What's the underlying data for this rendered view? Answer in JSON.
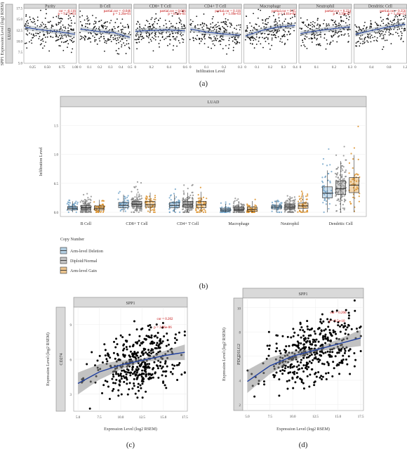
{
  "captions": {
    "a": "(a)",
    "b": "(b)",
    "c": "(c)",
    "d": "(d)"
  },
  "chart_data": [
    {
      "id": "a",
      "type": "scatter",
      "side_label": "LUAD",
      "ylabel": "SPP1 Expression Level (log2 RSEM)",
      "xlabel": "Infiltration Level",
      "ylim": [
        5,
        17.5
      ],
      "yticks": [
        "5.0",
        "7.5",
        "10.0",
        "12.5",
        "15.0",
        "17.5"
      ],
      "panels": [
        {
          "name": "Purity",
          "stat1": "cor = -0.116",
          "stat2": "p = 9.77e-03",
          "xlim": [
            0.1,
            1.0
          ],
          "xticks": [
            "0.25",
            "0.50",
            "0.75",
            "1.00"
          ],
          "trend": [
            13.2,
            12.6,
            12.2,
            11.6
          ]
        },
        {
          "name": "B Cell",
          "stat1": "partial.cor = -0.046",
          "stat2": "p = 3.26e-01",
          "xlim": [
            0,
            0.5
          ],
          "xticks": [
            "0",
            "0.1",
            "0.2",
            "0.3",
            "0.4",
            "0.5"
          ],
          "trend": [
            12.8,
            12.3,
            12.0,
            10.9
          ]
        },
        {
          "name": "CD8+ T Cell",
          "stat1": "partial.cor = 0.006",
          "stat2": "p = 8.97e-01",
          "xlim": [
            0,
            0.6
          ],
          "xticks": [
            "0",
            "0.2",
            "0.4",
            "0.6"
          ],
          "trend": [
            12.3,
            12.5,
            12.6,
            12.4
          ]
        },
        {
          "name": "CD4+ T Cell",
          "stat1": "partial.cor = 0.116",
          "stat2": "p = 1.09e-03",
          "xlim": [
            0,
            0.3
          ],
          "xticks": [
            "0",
            "0.1",
            "0.2",
            "0.3"
          ],
          "trend": [
            12.8,
            12.1,
            11.7,
            11.4
          ]
        },
        {
          "name": "Macrophage",
          "stat1": "partial.cor = 0.05",
          "stat2": "p = 2.61e-04",
          "xlim": [
            0,
            0.4
          ],
          "xticks": [
            "0",
            "0.1",
            "0.2",
            "0.3",
            "0.4"
          ],
          "trend": [
            11.2,
            12.5,
            13.3,
            13.6
          ]
        },
        {
          "name": "Neutrophil",
          "stat1": "partial.cor = 0.224",
          "stat2": "p = 3.39e-07",
          "xlim": [
            0,
            0.3
          ],
          "xticks": [
            "0",
            "0.1",
            "0.2",
            "0.3"
          ],
          "trend": [
            11.8,
            12.4,
            12.9,
            13.3
          ]
        },
        {
          "name": "Dendritic Cell",
          "stat1": "partial.cor = 0.356",
          "stat2": "p = 1.44e-13",
          "xlim": [
            0,
            1.2
          ],
          "xticks": [
            "0",
            "0.4",
            "0.8",
            "1.2"
          ],
          "trend": [
            11.6,
            12.5,
            13.3,
            13.9
          ]
        }
      ]
    },
    {
      "id": "b",
      "type": "box",
      "title": "LUAD",
      "ylabel": "Infiltration Level",
      "ylim": [
        0,
        1.75
      ],
      "yticks": [
        "0.0",
        "0.5",
        "1.0",
        "1.5"
      ],
      "categories": [
        "B Cell",
        "CD8+ T Cell",
        "CD4+ T Cell",
        "Macrophage",
        "Neutrophil",
        "Dendritic Cell"
      ],
      "legend_title": "Copy Number",
      "legend_position": "bottom-left",
      "series": [
        {
          "name": "Arm-level Deletion",
          "color": "#6a9fc6",
          "boxes": [
            [
              0.04,
              0.07,
              0.1
            ],
            [
              0.08,
              0.12,
              0.17
            ],
            [
              0.08,
              0.12,
              0.17
            ],
            [
              0.02,
              0.04,
              0.07
            ],
            [
              0.06,
              0.09,
              0.12
            ],
            [
              0.25,
              0.33,
              0.44
            ]
          ]
        },
        {
          "name": "Diploid/Normal",
          "color": "#8a8a8a",
          "boxes": [
            [
              0.05,
              0.08,
              0.12
            ],
            [
              0.1,
              0.14,
              0.19
            ],
            [
              0.09,
              0.13,
              0.19
            ],
            [
              0.03,
              0.05,
              0.09
            ],
            [
              0.06,
              0.09,
              0.13
            ],
            [
              0.31,
              0.41,
              0.54
            ]
          ]
        },
        {
          "name": "Arm-level Gain",
          "color": "#d98b1f",
          "boxes": [
            [
              0.04,
              0.07,
              0.11
            ],
            [
              0.09,
              0.13,
              0.19
            ],
            [
              0.08,
              0.13,
              0.19
            ],
            [
              0.02,
              0.05,
              0.09
            ],
            [
              0.07,
              0.11,
              0.16
            ],
            [
              0.34,
              0.47,
              0.6
            ]
          ]
        }
      ]
    },
    {
      "id": "c",
      "type": "scatter",
      "panel_title": "SPP1",
      "ylabel": "Expression Level (log2 RSEM)",
      "side_label": "CD274",
      "xlabel": "Expression Level (log2 RSEM)",
      "stat1": "cor = 0.202",
      "stat2": "p = 3.96e-06",
      "xlim": [
        4.5,
        17.8
      ],
      "ylim": [
        1.5,
        10.5
      ],
      "xticks": [
        "5.0",
        "7.5",
        "10.0",
        "12.5",
        "15.0",
        "17.5"
      ],
      "yticks": [
        "3",
        "6",
        "9"
      ],
      "trend": [
        [
          5,
          3.9
        ],
        [
          7.5,
          4.9
        ],
        [
          10,
          5.5
        ],
        [
          12.5,
          5.9
        ],
        [
          15,
          6.3
        ],
        [
          17.5,
          6.6
        ]
      ]
    },
    {
      "id": "d",
      "type": "scatter",
      "panel_title": "SPP1",
      "ylabel": "Expression Level (log2 RSEM)",
      "side_label": "PDCD1LG2",
      "xlabel": "Expression Level (log2 RSEM)",
      "stat1": "cor = 0.266",
      "stat2": "p = 9.5e-10",
      "xlim": [
        4.5,
        17.8
      ],
      "ylim": [
        1.5,
        10.8
      ],
      "xticks": [
        "5.0",
        "7.5",
        "10.0",
        "12.5",
        "15.0",
        "17.5"
      ],
      "yticks": [
        "2",
        "4",
        "6",
        "8",
        "10"
      ],
      "trend": [
        [
          5,
          3.9
        ],
        [
          7.5,
          5.2
        ],
        [
          10,
          6.0
        ],
        [
          12.5,
          6.5
        ],
        [
          15,
          7.0
        ],
        [
          17.5,
          7.5
        ]
      ]
    }
  ]
}
